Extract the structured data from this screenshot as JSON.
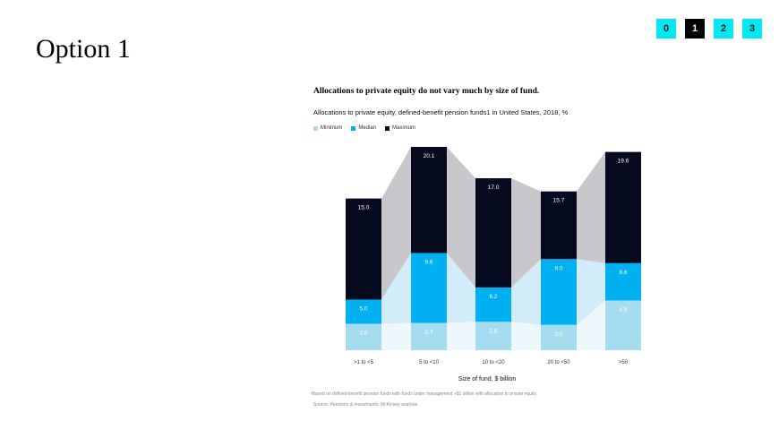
{
  "page": {
    "title": "Option 1"
  },
  "nav": {
    "tabs": [
      "0",
      "1",
      "2",
      "3"
    ],
    "active_index": 1
  },
  "colors": {
    "minimum": "#a6dcef",
    "median": "#00b0f0",
    "maximum": "#050a1f",
    "range_band": "#c8c8cc",
    "median_band": "#d3ecfa",
    "minimum_band": "#edf7fc",
    "tab": "#00e8f0"
  },
  "chart_data": {
    "type": "bar",
    "title": "Allocations to private equity do not vary much by size of fund.",
    "subtitle": "Allocations to private equity, defined-benefit pension funds1 in United States, 2018, %",
    "xlabel": "Size of fund, $ billion",
    "ylabel": "",
    "categories": [
      ">1 to <5",
      "5 to <10",
      "10 to <20",
      "20 to <50",
      ">50"
    ],
    "series": [
      {
        "name": "Minimum",
        "values": [
          2.6,
          2.7,
          2.8,
          2.5,
          4.9
        ]
      },
      {
        "name": "Median",
        "values": [
          5.0,
          9.6,
          6.2,
          9.0,
          8.6
        ]
      },
      {
        "name": "Maximum",
        "values": [
          15.0,
          20.1,
          17.0,
          15.7,
          19.6
        ]
      }
    ],
    "ylim": [
      0,
      20.1
    ],
    "legend_position": "top-left",
    "grid": false
  },
  "footnote": "¹Based on defined-benefit pension funds with funds under management >$1 billion with allocation to private equity.",
  "source": {
    "prefix": "Source: ",
    "name": "Pensions & Investments",
    "suffix": "; McKinsey analysis"
  }
}
